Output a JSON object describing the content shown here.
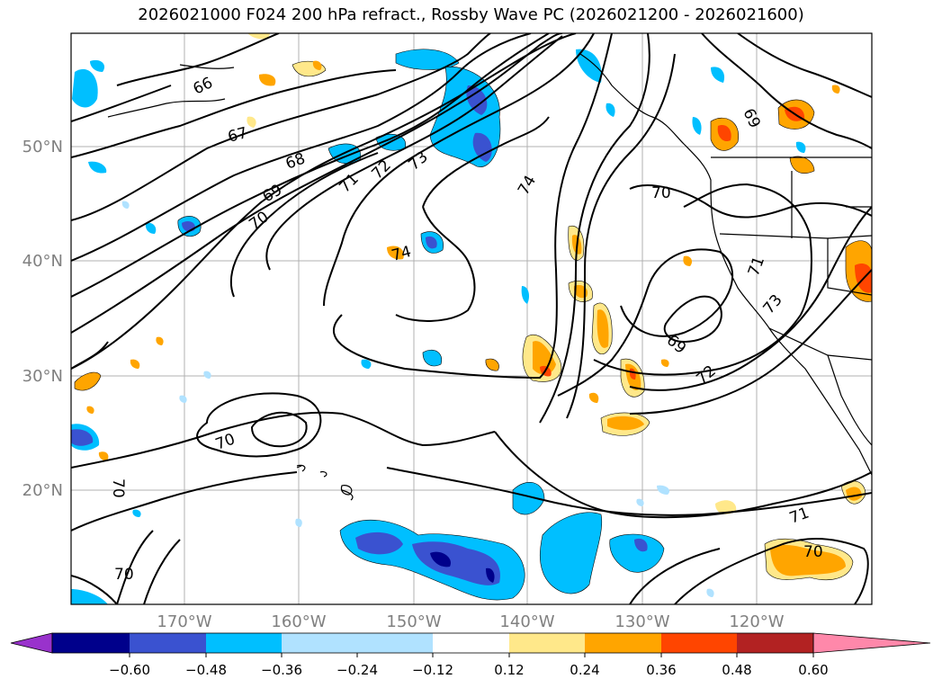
{
  "title": "2026021000 F024 200 hPa refract., Rossby Wave PC (2026021200 - 2026021600)",
  "map": {
    "lat_labels": [
      "50°N",
      "40°N",
      "30°N",
      "20°N"
    ],
    "lon_labels": [
      "170°W",
      "160°W",
      "150°W",
      "140°W",
      "130°W",
      "120°W"
    ],
    "contour_labels": [
      "66",
      "67",
      "68",
      "69",
      "70",
      "71",
      "72",
      "73",
      "74",
      "70",
      "69",
      "72",
      "73",
      "71",
      "69",
      "74",
      "70",
      "70",
      "70",
      "71",
      "70"
    ]
  },
  "colorbar": {
    "ticks": [
      "−0.60",
      "−0.48",
      "−0.36",
      "−0.24",
      "−0.12",
      "0.12",
      "0.24",
      "0.36",
      "0.48",
      "0.60"
    ],
    "colors": [
      "#9932cc",
      "#00008b",
      "#3a52d0",
      "#00bfff",
      "#b0e2ff",
      "#ffffff",
      "#ffe88a",
      "#ffa500",
      "#ff4500",
      "#b22222",
      "#ff88aa"
    ]
  }
}
